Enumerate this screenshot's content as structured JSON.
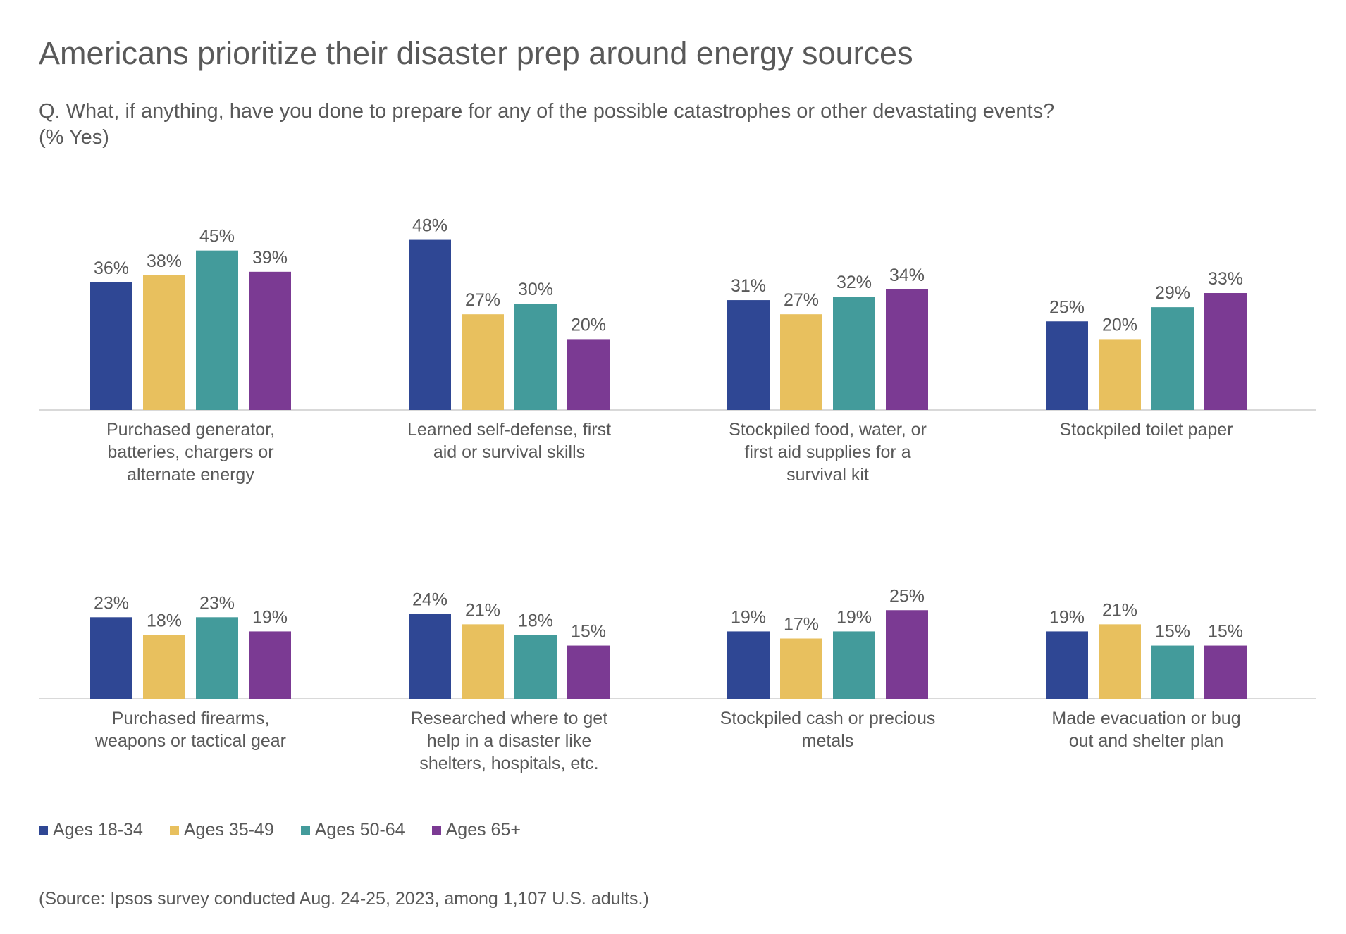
{
  "chart_data": {
    "type": "bar",
    "title": "Americans prioritize their disaster prep around energy sources",
    "subtitle": "Q. What, if anything, have you done to prepare for any of the possible catastrophes or other devastating events?",
    "subtitle2": "(% Yes)",
    "categories": [
      [
        "Purchased generator,",
        "batteries, chargers or",
        "alternate energy"
      ],
      [
        "Learned self-defense, first",
        "aid or survival skills"
      ],
      [
        "Stockpiled food, water, or",
        "first aid supplies for a",
        "survival kit"
      ],
      [
        "Stockpiled toilet paper"
      ],
      [
        "Purchased firearms,",
        "weapons or tactical gear"
      ],
      [
        "Researched where to get",
        "help in a disaster like",
        "shelters, hospitals, etc."
      ],
      [
        "Stockpiled cash or precious",
        "metals"
      ],
      [
        "Made evacuation or bug",
        "out and shelter plan"
      ]
    ],
    "series": [
      {
        "name": "Ages 18-34",
        "color": "#2f4794",
        "values": [
          36,
          48,
          31,
          25,
          23,
          24,
          19,
          19
        ]
      },
      {
        "name": "Ages 35-49",
        "color": "#e8c05e",
        "values": [
          38,
          27,
          27,
          20,
          18,
          21,
          17,
          21
        ]
      },
      {
        "name": "Ages 50-64",
        "color": "#439b9b",
        "values": [
          45,
          30,
          32,
          29,
          23,
          18,
          19,
          15
        ]
      },
      {
        "name": "Ages 65+",
        "color": "#7b3a93",
        "values": [
          39,
          20,
          34,
          33,
          19,
          15,
          25,
          15
        ]
      }
    ],
    "value_suffix": "%",
    "legend_position": "bottom-left",
    "grid": false,
    "ylim": [
      0,
      50
    ],
    "source": "(Source: Ipsos survey conducted Aug. 24-25, 2023, among 1,107 U.S. adults.)"
  }
}
